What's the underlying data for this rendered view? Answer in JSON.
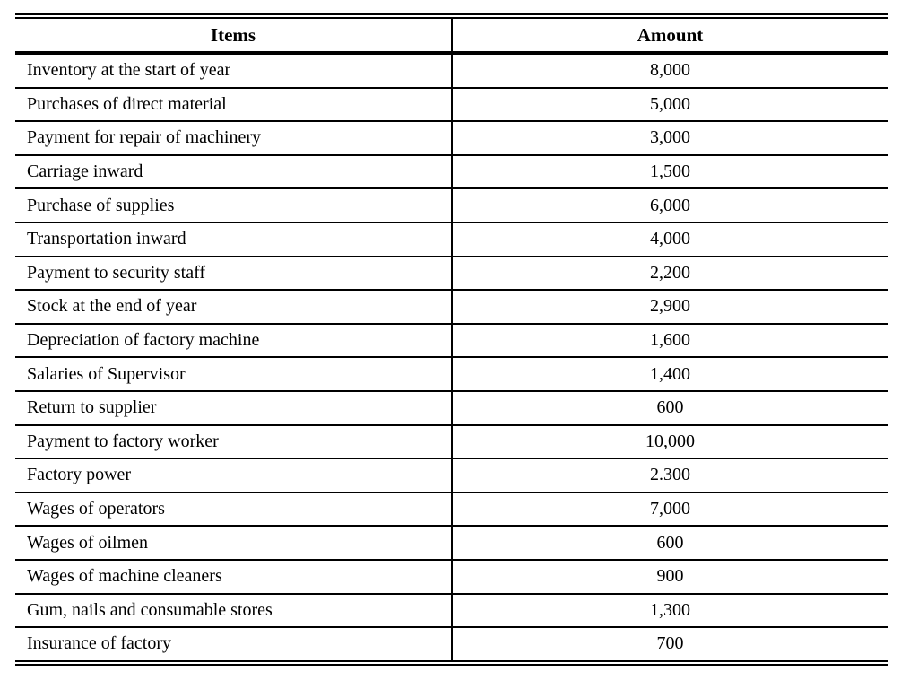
{
  "colors": {
    "text": "#000000",
    "background": "#ffffff",
    "border": "#000000"
  },
  "table": {
    "headers": {
      "items": "Items",
      "amount": "Amount"
    },
    "rows": [
      {
        "item": "Inventory at the start of year",
        "amount": "8,000"
      },
      {
        "item": "Purchases of direct material",
        "amount": "5,000"
      },
      {
        "item": "Payment for repair of machinery",
        "amount": "3,000"
      },
      {
        "item": "Carriage inward",
        "amount": "1,500"
      },
      {
        "item": "Purchase of supplies",
        "amount": "6,000"
      },
      {
        "item": "Transportation inward",
        "amount": "4,000"
      },
      {
        "item": "Payment to security staff",
        "amount": "2,200"
      },
      {
        "item": "Stock at the end of year",
        "amount": "2,900"
      },
      {
        "item": "Depreciation of factory machine",
        "amount": "1,600"
      },
      {
        "item": "Salaries of Supervisor",
        "amount": "1,400"
      },
      {
        "item": "Return to supplier",
        "amount": "600"
      },
      {
        "item": "Payment to factory worker",
        "amount": "10,000"
      },
      {
        "item": "Factory power",
        "amount": "2.300"
      },
      {
        "item": "Wages of operators",
        "amount": "7,000"
      },
      {
        "item": "Wages of oilmen",
        "amount": "600"
      },
      {
        "item": "Wages of machine cleaners",
        "amount": "900"
      },
      {
        "item": "Gum, nails and consumable stores",
        "amount": "1,300"
      },
      {
        "item": "Insurance of factory",
        "amount": "700"
      }
    ]
  }
}
